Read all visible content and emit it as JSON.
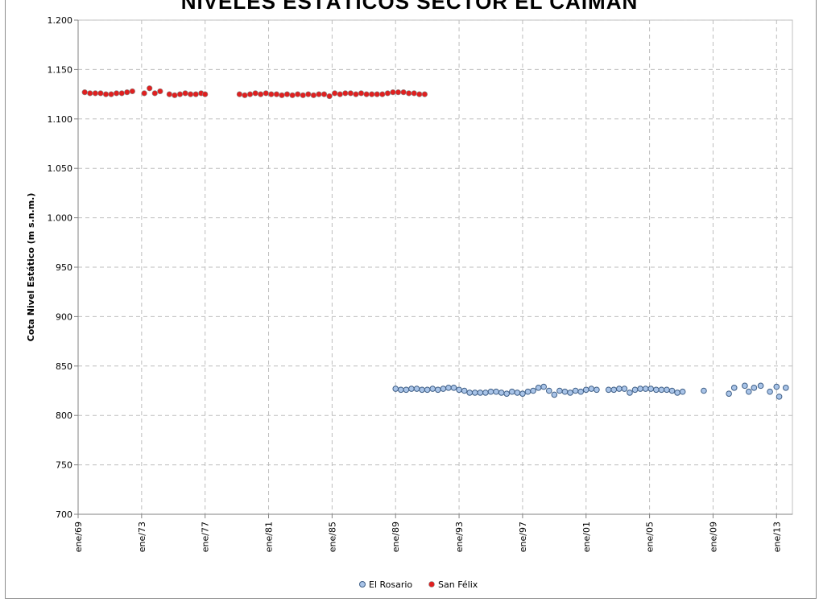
{
  "chart_data": {
    "type": "scatter",
    "title": "NIVELES ESTÁTICOS SECTOR EL CAIMÁN",
    "xlabel": "",
    "ylabel": "Cota Nivel Estático (m s.n.m.)",
    "xlim": [
      "1969-01",
      "2014-01"
    ],
    "ylim": [
      700,
      1200
    ],
    "yticks": [
      700,
      750,
      800,
      850,
      900,
      950,
      1000,
      1050,
      1100,
      1150,
      1200
    ],
    "ytick_labels": [
      "700",
      "750",
      "800",
      "850",
      "900",
      "950",
      "1.000",
      "1.050",
      "1.100",
      "1.150",
      "1.200"
    ],
    "xtick_labels": [
      {
        "date": "1969-01",
        "label": "ene/69"
      },
      {
        "date": "1973-01",
        "label": "ene/73"
      },
      {
        "date": "1977-01",
        "label": "ene/77"
      },
      {
        "date": "1981-01",
        "label": "ene/81"
      },
      {
        "date": "1985-01",
        "label": "ene/85"
      },
      {
        "date": "1989-01",
        "label": "ene/89"
      },
      {
        "date": "1993-01",
        "label": "ene/93"
      },
      {
        "date": "1997-01",
        "label": "ene/97"
      },
      {
        "date": "2001-01",
        "label": "ene/01"
      },
      {
        "date": "2005-01",
        "label": "ene/05"
      },
      {
        "date": "2009-01",
        "label": "ene/09"
      },
      {
        "date": "2013-01",
        "label": "ene/13"
      }
    ],
    "grid": true,
    "legend_position": "bottom",
    "series": [
      {
        "name": "El Rosario",
        "color": "#a9c4e8",
        "edge": "#3f5f87",
        "points": [
          [
            "1989-01",
            827
          ],
          [
            "1989-05",
            826
          ],
          [
            "1989-09",
            826
          ],
          [
            "1990-01",
            827
          ],
          [
            "1990-05",
            827
          ],
          [
            "1990-09",
            826
          ],
          [
            "1991-01",
            826
          ],
          [
            "1991-05",
            827
          ],
          [
            "1991-09",
            826
          ],
          [
            "1992-01",
            827
          ],
          [
            "1992-05",
            828
          ],
          [
            "1992-09",
            828
          ],
          [
            "1993-01",
            826
          ],
          [
            "1993-05",
            825
          ],
          [
            "1993-09",
            823
          ],
          [
            "1994-01",
            823
          ],
          [
            "1994-05",
            823
          ],
          [
            "1994-09",
            823
          ],
          [
            "1995-01",
            824
          ],
          [
            "1995-05",
            824
          ],
          [
            "1995-09",
            823
          ],
          [
            "1996-01",
            822
          ],
          [
            "1996-05",
            824
          ],
          [
            "1996-09",
            823
          ],
          [
            "1997-01",
            822
          ],
          [
            "1997-05",
            824
          ],
          [
            "1997-09",
            825
          ],
          [
            "1998-01",
            828
          ],
          [
            "1998-05",
            829
          ],
          [
            "1998-09",
            825
          ],
          [
            "1999-01",
            821
          ],
          [
            "1999-05",
            825
          ],
          [
            "1999-09",
            824
          ],
          [
            "2000-01",
            823
          ],
          [
            "2000-05",
            825
          ],
          [
            "2000-09",
            824
          ],
          [
            "2001-01",
            826
          ],
          [
            "2001-05",
            827
          ],
          [
            "2001-09",
            826
          ],
          [
            "2002-06",
            826
          ],
          [
            "2002-10",
            826
          ],
          [
            "2003-02",
            827
          ],
          [
            "2003-06",
            827
          ],
          [
            "2003-10",
            823
          ],
          [
            "2004-02",
            826
          ],
          [
            "2004-06",
            827
          ],
          [
            "2004-10",
            827
          ],
          [
            "2005-02",
            827
          ],
          [
            "2005-06",
            826
          ],
          [
            "2005-10",
            826
          ],
          [
            "2006-02",
            826
          ],
          [
            "2006-06",
            825
          ],
          [
            "2006-10",
            823
          ],
          [
            "2007-02",
            824
          ],
          [
            "2008-06",
            825
          ],
          [
            "2010-01",
            822
          ],
          [
            "2010-05",
            828
          ],
          [
            "2011-01",
            830
          ],
          [
            "2011-04",
            824
          ],
          [
            "2011-08",
            828
          ],
          [
            "2012-01",
            830
          ],
          [
            "2012-08",
            824
          ],
          [
            "2013-01",
            829
          ],
          [
            "2013-03",
            819
          ],
          [
            "2013-08",
            828
          ]
        ]
      },
      {
        "name": "San Félix",
        "color": "#e02020",
        "edge": "#8a8a8a",
        "points": [
          [
            "1969-06",
            1127
          ],
          [
            "1969-10",
            1126
          ],
          [
            "1970-02",
            1126
          ],
          [
            "1970-06",
            1126
          ],
          [
            "1970-10",
            1125
          ],
          [
            "1971-02",
            1125
          ],
          [
            "1971-06",
            1126
          ],
          [
            "1971-10",
            1126
          ],
          [
            "1972-02",
            1127
          ],
          [
            "1972-06",
            1128
          ],
          [
            "1973-03",
            1126
          ],
          [
            "1973-07",
            1131
          ],
          [
            "1973-11",
            1126
          ],
          [
            "1974-03",
            1128
          ],
          [
            "1974-10",
            1125
          ],
          [
            "1975-02",
            1124
          ],
          [
            "1975-06",
            1125
          ],
          [
            "1975-10",
            1126
          ],
          [
            "1976-02",
            1125
          ],
          [
            "1976-06",
            1125
          ],
          [
            "1976-10",
            1126
          ],
          [
            "1977-01",
            1125
          ],
          [
            "1979-03",
            1125
          ],
          [
            "1979-07",
            1124
          ],
          [
            "1979-11",
            1125
          ],
          [
            "1980-03",
            1126
          ],
          [
            "1980-07",
            1125
          ],
          [
            "1980-11",
            1126
          ],
          [
            "1981-03",
            1125
          ],
          [
            "1981-07",
            1125
          ],
          [
            "1981-11",
            1124
          ],
          [
            "1982-03",
            1125
          ],
          [
            "1982-07",
            1124
          ],
          [
            "1982-11",
            1125
          ],
          [
            "1983-03",
            1124
          ],
          [
            "1983-07",
            1125
          ],
          [
            "1983-11",
            1124
          ],
          [
            "1984-03",
            1125
          ],
          [
            "1984-07",
            1125
          ],
          [
            "1984-11",
            1123
          ],
          [
            "1985-03",
            1126
          ],
          [
            "1985-07",
            1125
          ],
          [
            "1985-11",
            1126
          ],
          [
            "1986-03",
            1126
          ],
          [
            "1986-07",
            1125
          ],
          [
            "1986-11",
            1126
          ],
          [
            "1987-03",
            1125
          ],
          [
            "1987-07",
            1125
          ],
          [
            "1987-11",
            1125
          ],
          [
            "1988-03",
            1125
          ],
          [
            "1988-07",
            1126
          ],
          [
            "1988-11",
            1127
          ],
          [
            "1989-03",
            1127
          ],
          [
            "1989-07",
            1127
          ],
          [
            "1989-11",
            1126
          ],
          [
            "1990-03",
            1126
          ],
          [
            "1990-07",
            1125
          ],
          [
            "1990-11",
            1125
          ]
        ]
      }
    ]
  }
}
